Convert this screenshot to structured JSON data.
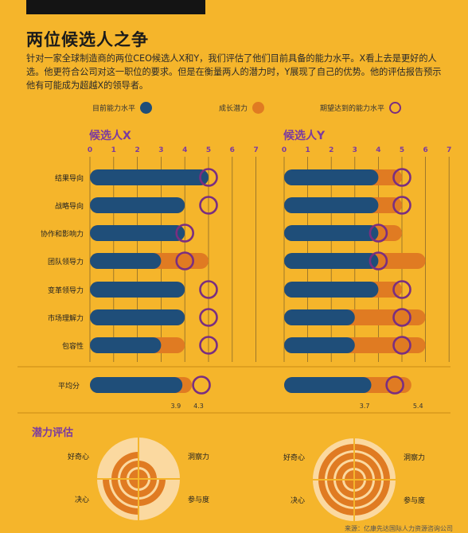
{
  "title": "两位候选人之争",
  "intro": "针对一家全球制造商的两位CEO候选人X和Y，我们评估了他们目前具备的能力水平。X看上去是更好的人选。他更符合公司对这一职位的要求。但是在衡量两人的潜力时，Y展现了自己的优势。他的评估报告预示他有可能成为超越X的领导者。",
  "legend": {
    "current": "目前能力水平",
    "growth": "成长潜力",
    "expected": "期望达到的能力水平"
  },
  "colors": {
    "background": "#f5b52b",
    "current_bar": "#1f4e79",
    "growth_bar": "#e07b22",
    "expected_ring": "#7a2e80",
    "title_purple": "#7b3aa0"
  },
  "potential_title": "潜力评估",
  "source": "来源：亿康先达国际人力资源咨询公司",
  "chart_data": [
    {
      "type": "bar",
      "title": "候选人X",
      "xlim": [
        0,
        7
      ],
      "ticks": [
        "0",
        "1",
        "2",
        "3",
        "4",
        "5",
        "6",
        "7"
      ],
      "categories": [
        "结果导向",
        "战略导向",
        "协作和影响力",
        "团队领导力",
        "变革领导力",
        "市场理解力",
        "包容性"
      ],
      "series": [
        {
          "name": "目前能力水平",
          "values": [
            5,
            4,
            4,
            3,
            4,
            4,
            3
          ]
        },
        {
          "name": "成长潜力",
          "values": [
            5,
            4,
            4,
            5,
            4,
            4,
            4
          ]
        },
        {
          "name": "期望达到的能力水平",
          "values": [
            5,
            5,
            4,
            4,
            5,
            5,
            5
          ]
        }
      ],
      "average": {
        "label": "平均分",
        "current": 3.9,
        "growth": 4.3,
        "expected": 4.7,
        "current_label": "3.9",
        "growth_label": "4.3"
      }
    },
    {
      "type": "bar",
      "title": "候选人Y",
      "xlim": [
        0,
        7
      ],
      "ticks": [
        "0",
        "1",
        "2",
        "3",
        "4",
        "5",
        "6",
        "7"
      ],
      "categories": [
        "结果导向",
        "战略导向",
        "协作和影响力",
        "团队领导力",
        "变革领导力",
        "市场理解力",
        "包容性"
      ],
      "series": [
        {
          "name": "目前能力水平",
          "values": [
            4,
            4,
            4,
            4,
            4,
            3,
            3
          ]
        },
        {
          "name": "成长潜力",
          "values": [
            5,
            5,
            5,
            6,
            5,
            6,
            6
          ]
        },
        {
          "name": "期望达到的能力水平",
          "values": [
            5,
            5,
            4,
            4,
            5,
            5,
            5
          ]
        }
      ],
      "average": {
        "label": "平均分",
        "current": 3.7,
        "growth": 5.4,
        "expected": 4.7,
        "current_label": "3.7",
        "growth_label": "5.4"
      }
    },
    {
      "type": "radial",
      "title": "潜力评估",
      "categories": [
        "好奇心",
        "洞察力",
        "决心",
        "参与度"
      ],
      "series": [
        {
          "name": "候选人X",
          "values": [
            3,
            2,
            4,
            3
          ]
        },
        {
          "name": "候选人Y",
          "values": [
            4,
            4,
            4,
            4
          ]
        }
      ],
      "max": 4
    }
  ]
}
